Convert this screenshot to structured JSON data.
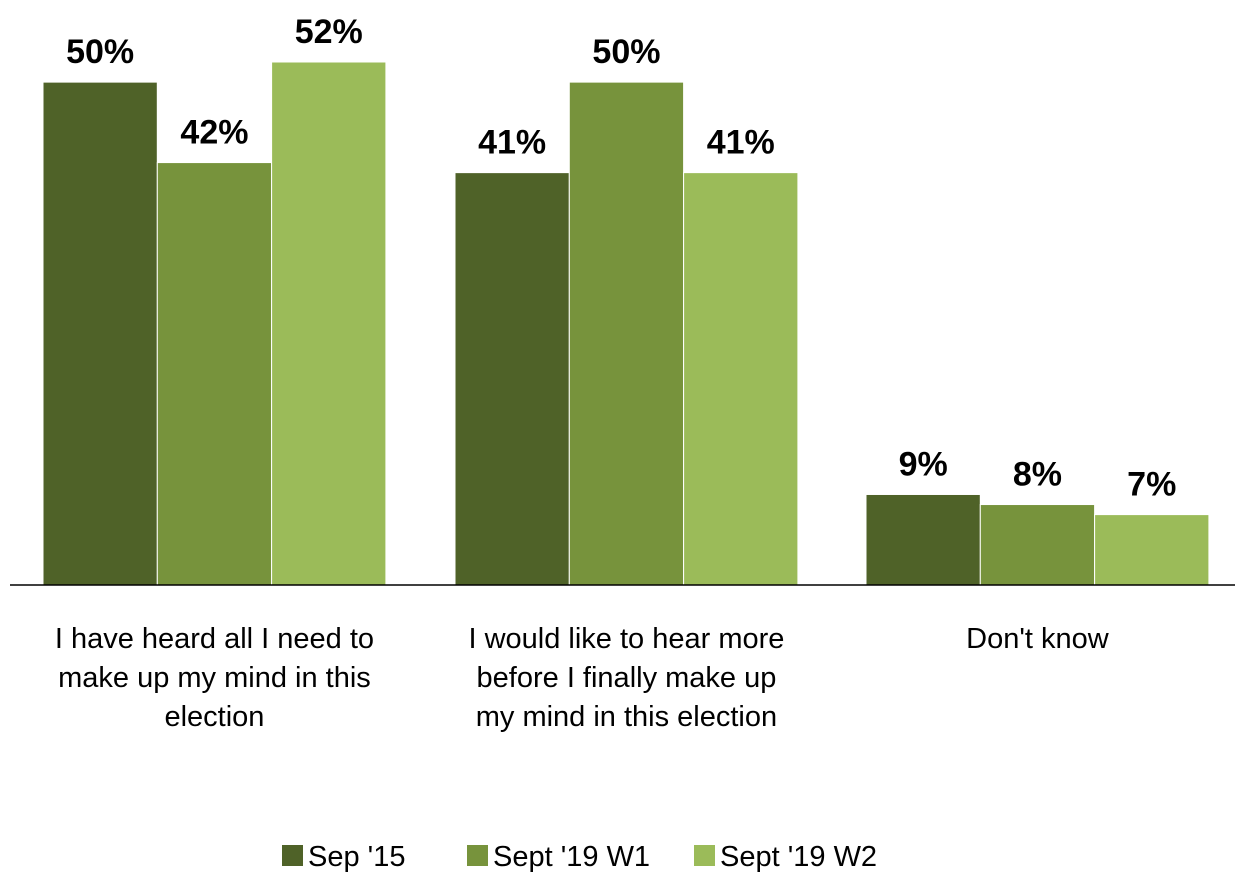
{
  "chart_data": {
    "type": "bar",
    "categories": [
      [
        "I have heard all I need to",
        "make up my mind in this",
        "election"
      ],
      [
        "I would like to hear more",
        "before I finally make up",
        "my mind in this election"
      ],
      [
        "Don't know"
      ]
    ],
    "series": [
      {
        "name": "Sep '15",
        "values": [
          50,
          41,
          9
        ],
        "labels": [
          "50%",
          "41%",
          "9%"
        ],
        "color": "#4f6228"
      },
      {
        "name": "Sept '19 W1",
        "values": [
          42,
          50,
          8
        ],
        "labels": [
          "42%",
          "50%",
          "8%"
        ],
        "color": "#77933c"
      },
      {
        "name": "Sept '19 W2",
        "values": [
          52,
          41,
          7
        ],
        "labels": [
          "52%",
          "41%",
          "7%"
        ],
        "color": "#9bbb59"
      }
    ],
    "title": "",
    "xlabel": "",
    "ylabel": "",
    "ylim": [
      0,
      56
    ],
    "grid": false,
    "legend_position": "bottom"
  }
}
